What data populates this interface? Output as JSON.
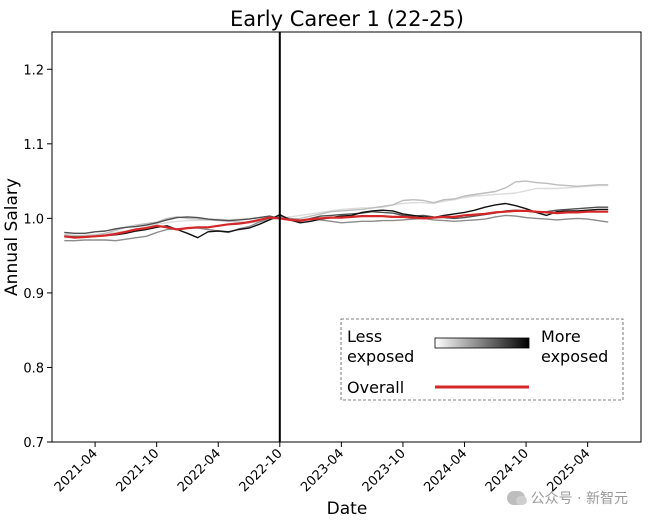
{
  "chart_data": {
    "type": "line",
    "title": "Early Career 1 (22-25)",
    "xlabel": "Date",
    "ylabel": "Annual Salary",
    "ylim": [
      0.7,
      1.25
    ],
    "yticks": [
      "0.7",
      "0.8",
      "0.9",
      "1.0",
      "1.1",
      "1.2"
    ],
    "xticks": [
      "2021-04",
      "2021-10",
      "2022-04",
      "2022-10",
      "2023-04",
      "2023-10",
      "2024-04",
      "2024-10",
      "2025-04"
    ],
    "x": [
      "2021-01",
      "2021-02",
      "2021-03",
      "2021-04",
      "2021-05",
      "2021-06",
      "2021-07",
      "2021-08",
      "2021-09",
      "2021-10",
      "2021-11",
      "2021-12",
      "2022-01",
      "2022-02",
      "2022-03",
      "2022-04",
      "2022-05",
      "2022-06",
      "2022-07",
      "2022-08",
      "2022-09",
      "2022-10",
      "2022-11",
      "2022-12",
      "2023-01",
      "2023-02",
      "2023-03",
      "2023-04",
      "2023-05",
      "2023-06",
      "2023-07",
      "2023-08",
      "2023-09",
      "2023-10",
      "2023-11",
      "2023-12",
      "2024-01",
      "2024-02",
      "2024-03",
      "2024-04",
      "2024-05",
      "2024-06",
      "2024-07",
      "2024-08",
      "2024-09",
      "2024-10",
      "2024-11",
      "2024-12",
      "2025-01",
      "2025-02",
      "2025-03",
      "2025-04",
      "2025-05",
      "2025-06"
    ],
    "vline": "2022-10",
    "grid": false,
    "legend_position": "bottom-right",
    "legend": {
      "gradient_left": "Less exposed",
      "gradient_right": "More exposed",
      "overall": "Overall",
      "less_line1": "Less",
      "less_line2": "exposed",
      "more_line1": "More",
      "more_line2": "exposed"
    },
    "series": [
      {
        "color": "#dcdcdc",
        "values": [
          0.974,
          0.975,
          0.976,
          0.977,
          0.979,
          0.981,
          0.983,
          0.986,
          0.989,
          0.992,
          0.994,
          0.996,
          0.997,
          0.997,
          0.998,
          0.999,
          0.998,
          0.999,
          1.0,
          1.001,
          1.002,
          1.0,
          1.002,
          1.004,
          1.006,
          1.008,
          1.01,
          1.012,
          1.013,
          1.014,
          1.014,
          1.015,
          1.018,
          1.02,
          1.021,
          1.021,
          1.02,
          1.023,
          1.025,
          1.028,
          1.03,
          1.031,
          1.032,
          1.033,
          1.034,
          1.037,
          1.04,
          1.04,
          1.04,
          1.041,
          1.042,
          1.043,
          1.044,
          1.044
        ]
      },
      {
        "color": "#bdbdbd",
        "values": [
          0.978,
          0.977,
          0.977,
          0.978,
          0.98,
          0.984,
          0.988,
          0.991,
          0.993,
          0.995,
          1.0,
          1.002,
          1.0,
          0.999,
          0.998,
          0.997,
          0.996,
          0.995,
          0.994,
          0.996,
          0.998,
          1.001,
          0.999,
          1.0,
          1.003,
          1.006,
          1.009,
          1.01,
          1.011,
          1.012,
          1.014,
          1.016,
          1.018,
          1.024,
          1.025,
          1.024,
          1.021,
          1.025,
          1.026,
          1.03,
          1.032,
          1.034,
          1.036,
          1.041,
          1.049,
          1.05,
          1.048,
          1.047,
          1.045,
          1.044,
          1.043,
          1.044,
          1.045,
          1.045
        ]
      },
      {
        "color": "#8c8c8c",
        "values": [
          0.97,
          0.97,
          0.971,
          0.971,
          0.971,
          0.97,
          0.972,
          0.974,
          0.976,
          0.981,
          0.985,
          0.986,
          0.987,
          0.987,
          0.985,
          0.983,
          0.981,
          0.986,
          0.989,
          0.995,
          0.999,
          1.003,
          1.0,
          0.998,
          0.999,
          0.998,
          0.996,
          0.994,
          0.995,
          0.996,
          0.996,
          0.997,
          0.997,
          0.998,
          0.999,
          1.0,
          0.998,
          0.997,
          0.996,
          0.997,
          0.998,
          0.999,
          1.002,
          1.004,
          1.003,
          1.001,
          1.0,
          0.999,
          0.998,
          0.999,
          1.0,
          0.999,
          0.997,
          0.995
        ]
      },
      {
        "color": "#505050",
        "values": [
          0.981,
          0.98,
          0.98,
          0.982,
          0.983,
          0.986,
          0.988,
          0.989,
          0.991,
          0.994,
          0.998,
          1.001,
          1.002,
          1.001,
          0.999,
          0.998,
          0.997,
          0.998,
          0.999,
          1.001,
          1.003,
          1.0,
          0.998,
          0.996,
          1.0,
          1.003,
          1.004,
          1.005,
          1.006,
          1.007,
          1.009,
          1.008,
          1.007,
          1.004,
          1.003,
          1.004,
          1.002,
          1.001,
          1.0,
          1.001,
          1.003,
          1.005,
          1.007,
          1.01,
          1.011,
          1.01,
          1.008,
          1.009,
          1.011,
          1.012,
          1.013,
          1.014,
          1.015,
          1.015
        ]
      },
      {
        "color": "#111111",
        "values": [
          0.976,
          0.975,
          0.975,
          0.976,
          0.977,
          0.978,
          0.98,
          0.983,
          0.985,
          0.988,
          0.99,
          0.985,
          0.98,
          0.974,
          0.982,
          0.983,
          0.982,
          0.985,
          0.987,
          0.992,
          0.998,
          1.005,
          0.998,
          0.994,
          0.996,
          0.999,
          1.001,
          1.003,
          1.004,
          1.008,
          1.01,
          1.011,
          1.01,
          1.006,
          1.004,
          1.002,
          1.001,
          1.004,
          1.006,
          1.008,
          1.011,
          1.015,
          1.018,
          1.02,
          1.017,
          1.013,
          1.008,
          1.004,
          1.009,
          1.01,
          1.01,
          1.011,
          1.012,
          1.012
        ]
      },
      {
        "color": "#d62728",
        "width": 2.2,
        "values": [
          0.976,
          0.974,
          0.975,
          0.976,
          0.977,
          0.979,
          0.982,
          0.985,
          0.987,
          0.99,
          0.988,
          0.985,
          0.987,
          0.988,
          0.988,
          0.99,
          0.992,
          0.993,
          0.995,
          0.998,
          1.001,
          1.0,
          0.998,
          0.997,
          0.999,
          1.0,
          1.001,
          1.001,
          1.002,
          1.003,
          1.003,
          1.003,
          1.002,
          1.002,
          1.001,
          1.0,
          1.001,
          1.002,
          1.002,
          1.004,
          1.005,
          1.006,
          1.008,
          1.009,
          1.01,
          1.01,
          1.009,
          1.008,
          1.007,
          1.008,
          1.008,
          1.009,
          1.009,
          1.009
        ]
      }
    ]
  },
  "watermark": "公众号 · 新智元"
}
